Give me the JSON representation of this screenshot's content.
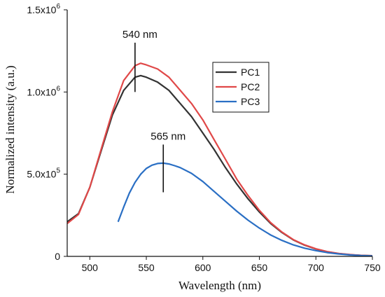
{
  "chart_data": {
    "type": "line",
    "title": "",
    "xlabel": "Wavelength (nm)",
    "ylabel": "Normalized intensity (a.u.)",
    "xlim": [
      480,
      750
    ],
    "ylim": [
      0,
      1500000
    ],
    "x_ticks": [
      {
        "value": 500,
        "label": "500"
      },
      {
        "value": 550,
        "label": "550"
      },
      {
        "value": 600,
        "label": "600"
      },
      {
        "value": 650,
        "label": "650"
      },
      {
        "value": 700,
        "label": "700"
      },
      {
        "value": 750,
        "label": "750"
      }
    ],
    "y_ticks": [
      {
        "value": 0,
        "label": "0"
      },
      {
        "value": 500000,
        "label": "5.0x10",
        "exp": "5"
      },
      {
        "value": 1000000,
        "label": "1.0x10",
        "exp": "6"
      },
      {
        "value": 1500000,
        "label": "1.5x10",
        "exp": "6"
      }
    ],
    "grid": false,
    "legend_position": "top-right",
    "series": [
      {
        "name": "PC1",
        "color": "#333333",
        "x": [
          480,
          490,
          500,
          510,
          520,
          530,
          540,
          545,
          550,
          560,
          570,
          580,
          590,
          600,
          610,
          620,
          630,
          640,
          650,
          660,
          670,
          680,
          690,
          700,
          710,
          720,
          730,
          740,
          750
        ],
        "y": [
          210000,
          260000,
          420000,
          640000,
          860000,
          1010000,
          1090000,
          1100000,
          1090000,
          1060000,
          1010000,
          930000,
          850000,
          750000,
          650000,
          540000,
          440000,
          350000,
          270000,
          200000,
          145000,
          100000,
          68000,
          45000,
          28000,
          17000,
          10000,
          6000,
          4000
        ]
      },
      {
        "name": "PC2",
        "color": "#e04848",
        "x": [
          480,
          490,
          500,
          510,
          520,
          530,
          540,
          545,
          550,
          560,
          570,
          580,
          590,
          600,
          610,
          620,
          630,
          640,
          650,
          660,
          670,
          680,
          690,
          700,
          710,
          720,
          730,
          740,
          750
        ],
        "y": [
          200000,
          255000,
          420000,
          650000,
          880000,
          1070000,
          1160000,
          1175000,
          1165000,
          1140000,
          1090000,
          1010000,
          930000,
          830000,
          710000,
          590000,
          470000,
          370000,
          280000,
          205000,
          148000,
          102000,
          70000,
          46000,
          29000,
          18000,
          11000,
          6000,
          4000
        ]
      },
      {
        "name": "PC3",
        "color": "#2a6fc4",
        "x": [
          525,
          530,
          535,
          540,
          545,
          550,
          555,
          560,
          565,
          570,
          575,
          580,
          590,
          600,
          610,
          620,
          630,
          640,
          650,
          660,
          670,
          680,
          690,
          700,
          710,
          720,
          730,
          740,
          750
        ],
        "y": [
          210000,
          300000,
          385000,
          450000,
          500000,
          535000,
          555000,
          565000,
          567000,
          562000,
          552000,
          540000,
          505000,
          455000,
          395000,
          335000,
          275000,
          220000,
          172000,
          130000,
          97000,
          70000,
          50000,
          35000,
          23000,
          15000,
          9000,
          5000,
          3000
        ]
      }
    ],
    "annotations": [
      {
        "text": "540 nm",
        "x": 540,
        "y_top": 1300000,
        "y_bottom": 1000000
      },
      {
        "text": "565 nm",
        "x": 565,
        "y_top": 680000,
        "y_bottom": 390000
      }
    ]
  }
}
